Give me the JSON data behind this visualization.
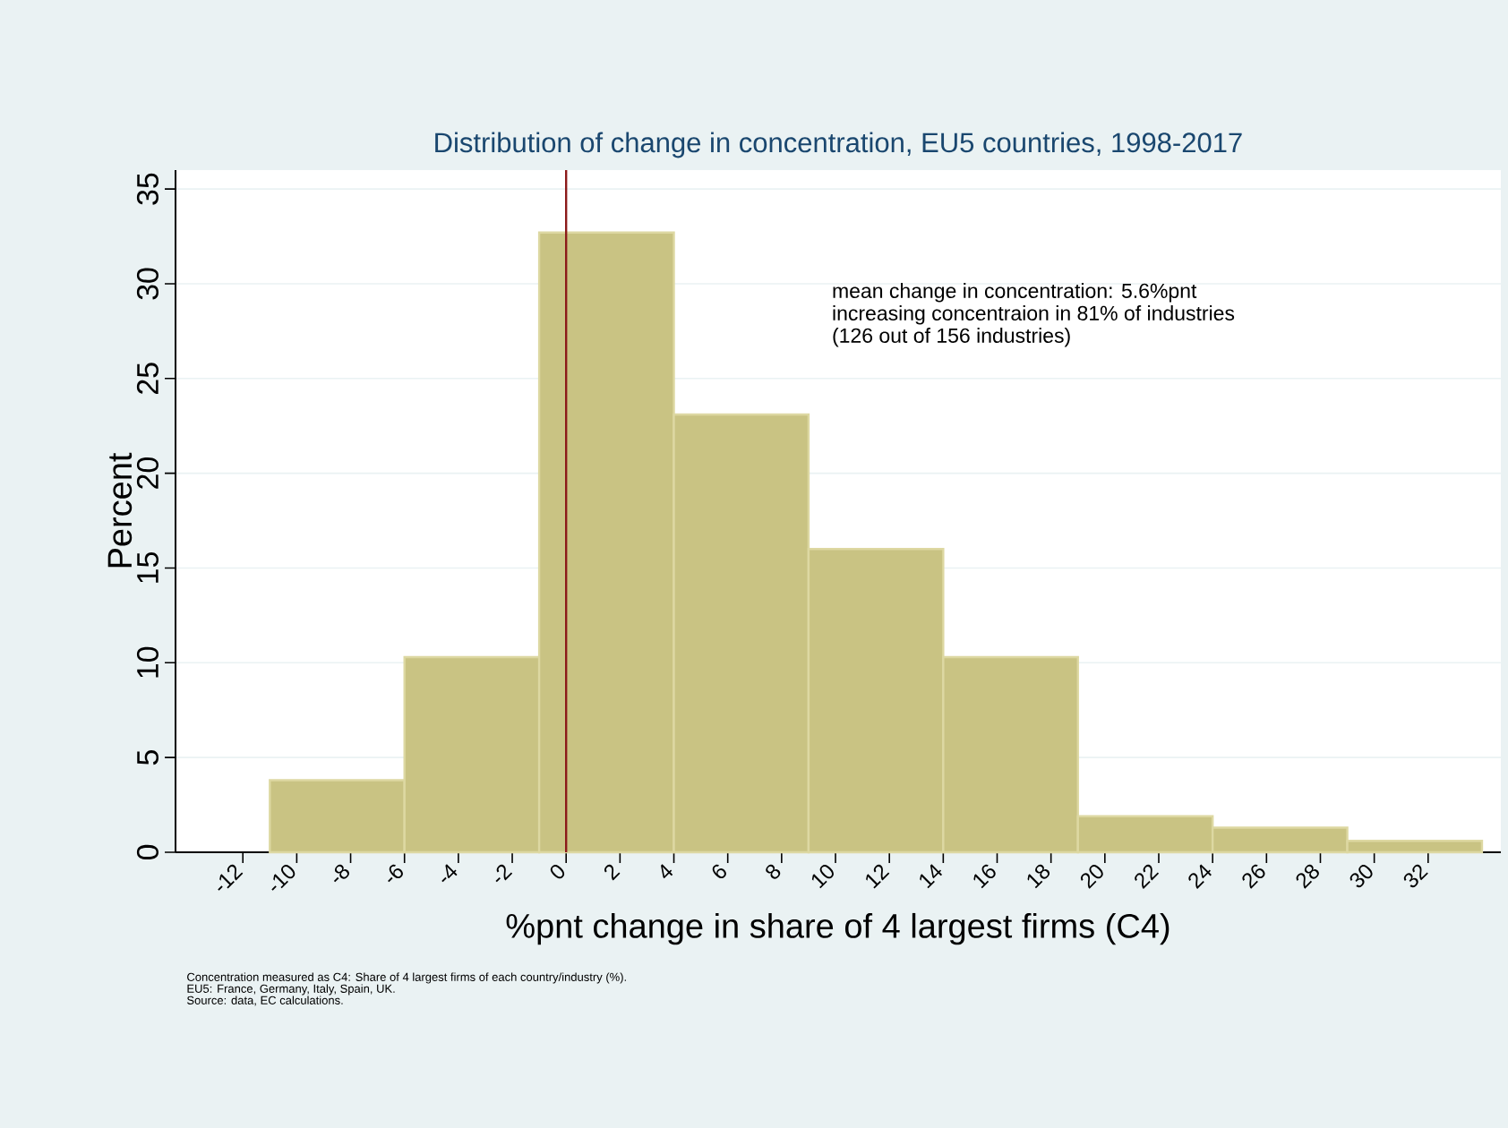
{
  "chart_data": {
    "type": "histogram",
    "title": "Distribution of change in concentration, EU5 countries, 1998-2017",
    "xlabel": "%pnt change in share of 4 largest firms (C4)",
    "ylabel": "Percent",
    "bins": [
      -11,
      -6,
      -1,
      4,
      9,
      14,
      19,
      24,
      29,
      34
    ],
    "values": [
      3.8,
      10.3,
      32.7,
      23.1,
      16.0,
      10.3,
      1.9,
      1.3,
      0.6
    ],
    "color": "#c9c383",
    "xlim": [
      -14.5,
      34.7
    ],
    "ylim": [
      0,
      36
    ],
    "xticks": [
      -12,
      -10,
      -8,
      -6,
      -4,
      -2,
      0,
      2,
      4,
      6,
      8,
      10,
      12,
      14,
      16,
      18,
      20,
      22,
      24,
      26,
      28,
      30,
      32
    ],
    "yticks": [
      0,
      5,
      10,
      15,
      20,
      25,
      30,
      35
    ],
    "grid": "y",
    "ref_lines": [
      {
        "axis": "x",
        "value": 0,
        "color": "#8b1a1a"
      }
    ],
    "annotations": [
      "mean change in concentration: 5.6%pnt",
      "increasing concentraion in 81% of industries",
      "(126 out of 156 industries)",
      "Concentration measured as C4: Share of 4 largest firms of each country/industry (%).",
      "EU5: France, Germany, Italy, Spain, UK.",
      "Source: data, EC calculations."
    ]
  }
}
